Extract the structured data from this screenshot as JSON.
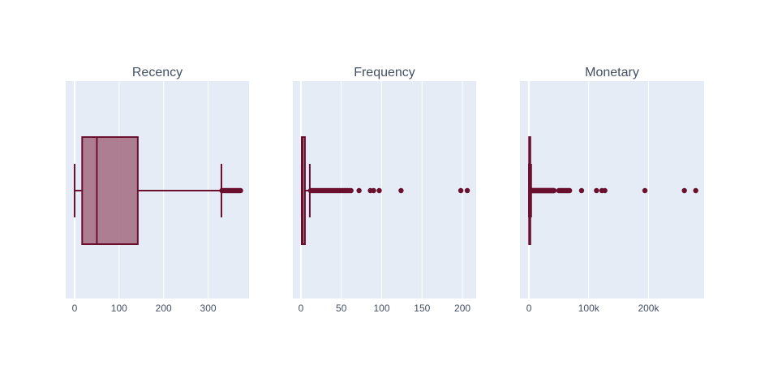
{
  "chart_data": [
    {
      "type": "box",
      "title": "Recency",
      "orientation": "horizontal",
      "xlim": [
        -20,
        392
      ],
      "xticks": [
        0,
        100,
        200,
        300
      ],
      "tick_labels": [
        "0",
        "100",
        "200",
        "300"
      ],
      "box": {
        "lower_fence": 0,
        "q1": 17,
        "median": 50,
        "q3": 142,
        "upper_fence": 330
      },
      "outliers": [
        331,
        334,
        337,
        340,
        343,
        346,
        349,
        352,
        355,
        358,
        361,
        364,
        367,
        370,
        373
      ]
    },
    {
      "type": "box",
      "title": "Frequency",
      "orientation": "horizontal",
      "xlim": [
        -10,
        217
      ],
      "xticks": [
        0,
        50,
        100,
        150,
        200
      ],
      "tick_labels": [
        "0",
        "50",
        "100",
        "150",
        "200"
      ],
      "box": {
        "lower_fence": 1,
        "q1": 1,
        "median": 2,
        "q3": 5,
        "upper_fence": 11
      },
      "outliers": [
        12,
        14,
        16,
        18,
        20,
        22,
        24,
        26,
        28,
        30,
        32,
        34,
        36,
        38,
        40,
        42,
        44,
        46,
        48,
        50,
        52,
        54,
        56,
        58,
        60,
        62,
        72,
        86,
        90,
        97,
        124,
        198,
        206
      ]
    },
    {
      "type": "box",
      "title": "Monetary",
      "orientation": "horizontal",
      "xlim": [
        -15000,
        293000
      ],
      "xticks": [
        0,
        100000,
        200000
      ],
      "tick_labels": [
        "0",
        "100k",
        "200k"
      ],
      "box": {
        "lower_fence": 0,
        "q1": 300,
        "median": 670,
        "q3": 1660,
        "upper_fence": 3700
      },
      "outliers": [
        4000,
        5000,
        6000,
        7000,
        8000,
        9000,
        10000,
        11000,
        12000,
        13000,
        14000,
        15000,
        16000,
        17000,
        18000,
        19000,
        20000,
        21000,
        22000,
        23000,
        24000,
        25000,
        26000,
        27000,
        28000,
        29000,
        30000,
        31000,
        32000,
        33000,
        34000,
        35000,
        36000,
        37000,
        38000,
        39000,
        40000,
        41000,
        42000,
        50000,
        52000,
        54000,
        56000,
        58000,
        60000,
        62000,
        64000,
        66000,
        68000,
        88000,
        113000,
        122000,
        127000,
        194000,
        260000,
        279000
      ]
    }
  ],
  "colors": {
    "line": "#6b0f2f",
    "fill": "#a36b80",
    "panel": "#e5ecf6",
    "grid": "#ffffff",
    "text": "#444f63"
  }
}
